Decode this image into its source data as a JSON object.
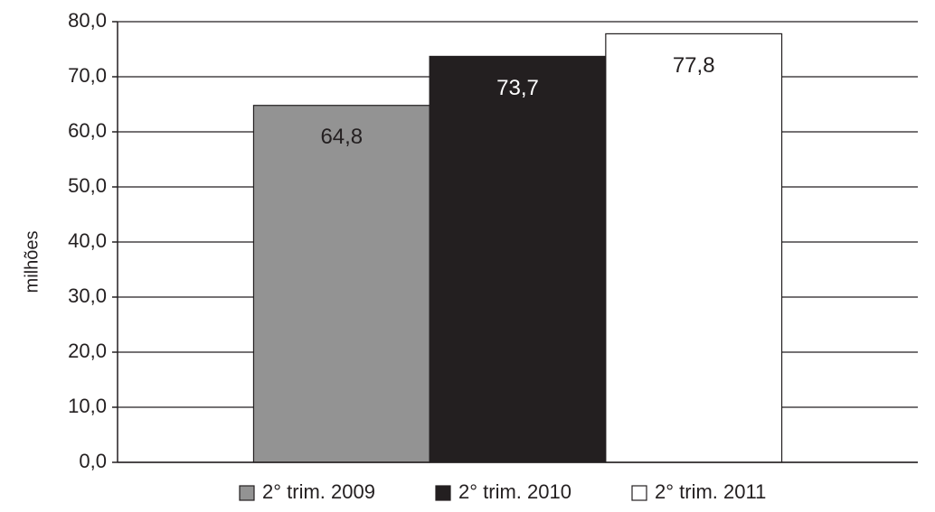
{
  "chart_data": {
    "type": "bar",
    "y_label": "milhões",
    "categories": [
      null
    ],
    "series": [
      {
        "name": "2° trim. 2009",
        "color": "#939393",
        "values": [
          64.8
        ],
        "value_labels": [
          "64,8"
        ]
      },
      {
        "name": "2° trim. 2010",
        "color": "#231f20",
        "values": [
          73.7
        ],
        "value_labels": [
          "73,7"
        ]
      },
      {
        "name": "2° trim. 2011",
        "color": "#ffffff",
        "values": [
          77.8
        ],
        "value_labels": [
          "77,8"
        ]
      }
    ],
    "ylim": [
      0,
      80
    ],
    "yticks": [
      {
        "value": 0,
        "label": "0,0"
      },
      {
        "value": 10,
        "label": "10,0"
      },
      {
        "value": 20,
        "label": "20,0"
      },
      {
        "value": 30,
        "label": "30,0"
      },
      {
        "value": 40,
        "label": "40,0"
      },
      {
        "value": 50,
        "label": "50,0"
      },
      {
        "value": 60,
        "label": "60,0"
      },
      {
        "value": 70,
        "label": "70,0"
      },
      {
        "value": 80,
        "label": "80,0"
      }
    ],
    "grid": true,
    "legend": "bottom"
  }
}
